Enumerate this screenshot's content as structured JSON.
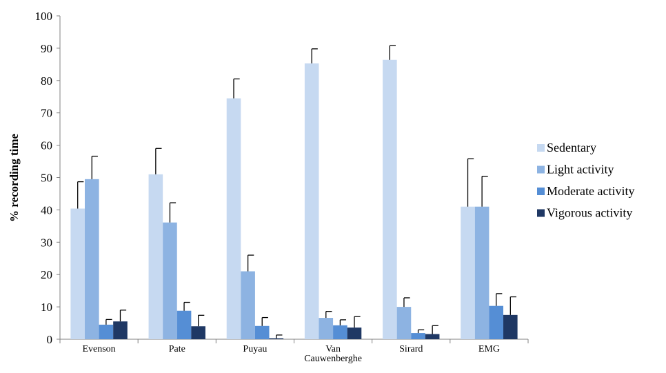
{
  "chart_data": {
    "type": "bar",
    "ylabel": "% recording time",
    "xlabel": "",
    "ylim": [
      0,
      100
    ],
    "ytick_step": 10,
    "yticks": [
      "0",
      "10",
      "20",
      "30",
      "40",
      "50",
      "60",
      "70",
      "80",
      "90",
      "100"
    ],
    "categories": [
      [
        "Evenson"
      ],
      [
        "Pate"
      ],
      [
        "Puyau"
      ],
      [
        "Van",
        "Cauwenberghe"
      ],
      [
        "Sirard"
      ],
      [
        "EMG"
      ]
    ],
    "legend_position": "right",
    "grid": false,
    "series": [
      {
        "name": "Sedentary",
        "color": "#c6d9f1",
        "values": [
          40.4,
          51.0,
          74.5,
          85.3,
          86.4,
          41.0
        ],
        "errors": [
          8.3,
          8.0,
          6.0,
          4.5,
          4.4,
          14.8
        ]
      },
      {
        "name": "Light activity",
        "color": "#8db3e2",
        "values": [
          49.5,
          36.1,
          21.0,
          6.6,
          10.0,
          41.0
        ],
        "errors": [
          7.1,
          6.1,
          5.0,
          2.0,
          2.8,
          9.4
        ]
      },
      {
        "name": "Moderate activity",
        "color": "#558ed5",
        "values": [
          4.5,
          8.8,
          4.1,
          4.3,
          1.9,
          10.3
        ],
        "errors": [
          1.6,
          2.6,
          2.6,
          1.7,
          1.0,
          3.8
        ]
      },
      {
        "name": "Vigorous activity",
        "color": "#1f3864",
        "values": [
          5.5,
          4.0,
          0.3,
          3.6,
          1.6,
          7.5
        ],
        "errors": [
          3.5,
          3.4,
          1.0,
          3.4,
          2.6,
          5.6
        ]
      }
    ]
  }
}
